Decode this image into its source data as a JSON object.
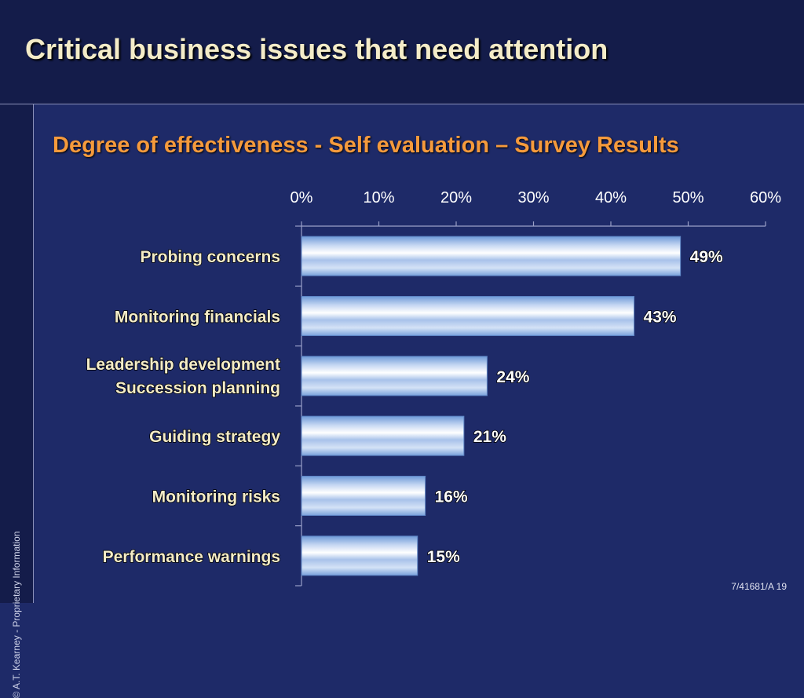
{
  "slide": {
    "title": "Critical business issues that need attention",
    "subtitle": "Degree of effectiveness  - Self evaluation – Survey Results",
    "copyright": "© A.T. Kearney - Proprietary Information",
    "footer": "7/41681/A  19"
  },
  "colors": {
    "background": "#1e2a68",
    "header": "#141c4a",
    "title_text": "#f4ecc8",
    "subtitle_text": "#f59a3c",
    "bar_edge": "#6f9ad8",
    "bar_highlight": "#ffffff"
  },
  "chart_data": {
    "type": "bar",
    "orientation": "horizontal",
    "categories": [
      [
        "Probing concerns"
      ],
      [
        "Monitoring financials"
      ],
      [
        "Leadership development",
        "Succession planning"
      ],
      [
        "Guiding strategy"
      ],
      [
        "Monitoring risks"
      ],
      [
        "Performance warnings"
      ]
    ],
    "values": [
      49,
      43,
      24,
      21,
      16,
      15
    ],
    "data_labels": [
      "49%",
      "43%",
      "24%",
      "21%",
      "16%",
      "15%"
    ],
    "xlim": [
      0,
      60
    ],
    "x_ticks": [
      0,
      10,
      20,
      30,
      40,
      50,
      60
    ],
    "x_tick_labels": [
      "0%",
      "10%",
      "20%",
      "30%",
      "40%",
      "50%",
      "60%"
    ],
    "axis_position": "top",
    "grid": false,
    "legend": "none"
  }
}
